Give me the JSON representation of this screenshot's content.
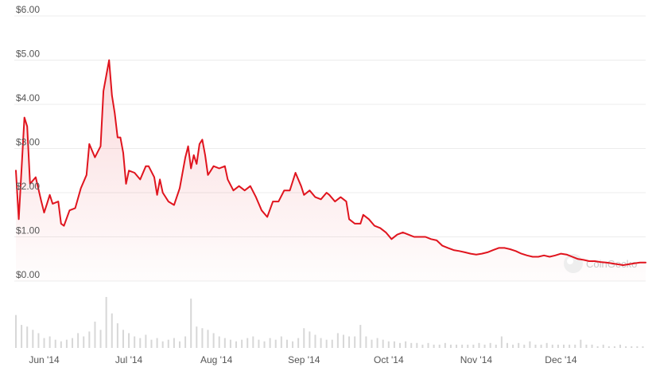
{
  "chart_data": {
    "type": "line",
    "y_tick_labels": [
      "$0.00",
      "$1.00",
      "$2.00",
      "$3.00",
      "$4.00",
      "$5.00",
      "$6.00"
    ],
    "y_tick_values": [
      0,
      1,
      2,
      3,
      4,
      5,
      6
    ],
    "ylim": [
      0,
      6
    ],
    "x_tick_labels": [
      "Jun '14",
      "Jul '14",
      "Aug '14",
      "Sep '14",
      "Oct '14",
      "Nov '14",
      "Dec '14"
    ],
    "x_tick_dates": [
      "2014-06-01",
      "2014-07-01",
      "2014-08-01",
      "2014-09-01",
      "2014-10-01",
      "2014-11-01",
      "2014-12-01"
    ],
    "x_range": [
      "2014-05-22",
      "2014-12-31"
    ],
    "grid": true,
    "line_color": "#e0141e",
    "volume_color": "#d7d7d7",
    "watermark": "CoinGecko",
    "price": {
      "dates": [
        "2014-05-22",
        "2014-05-23",
        "2014-05-25",
        "2014-05-26",
        "2014-05-27",
        "2014-05-29",
        "2014-05-31",
        "2014-06-01",
        "2014-06-02",
        "2014-06-03",
        "2014-06-04",
        "2014-06-06",
        "2014-06-07",
        "2014-06-08",
        "2014-06-10",
        "2014-06-12",
        "2014-06-14",
        "2014-06-16",
        "2014-06-17",
        "2014-06-19",
        "2014-06-21",
        "2014-06-22",
        "2014-06-24",
        "2014-06-25",
        "2014-06-26",
        "2014-06-27",
        "2014-06-28",
        "2014-06-29",
        "2014-06-30",
        "2014-07-01",
        "2014-07-03",
        "2014-07-05",
        "2014-07-07",
        "2014-07-08",
        "2014-07-10",
        "2014-07-11",
        "2014-07-12",
        "2014-07-13",
        "2014-07-15",
        "2014-07-17",
        "2014-07-19",
        "2014-07-21",
        "2014-07-22",
        "2014-07-23",
        "2014-07-24",
        "2014-07-25",
        "2014-07-26",
        "2014-07-27",
        "2014-07-28",
        "2014-07-29",
        "2014-07-30",
        "2014-07-31",
        "2014-08-02",
        "2014-08-04",
        "2014-08-05",
        "2014-08-07",
        "2014-08-09",
        "2014-08-11",
        "2014-08-13",
        "2014-08-15",
        "2014-08-17",
        "2014-08-19",
        "2014-08-21",
        "2014-08-23",
        "2014-08-25",
        "2014-08-27",
        "2014-08-29",
        "2014-08-31",
        "2014-09-01",
        "2014-09-03",
        "2014-09-05",
        "2014-09-07",
        "2014-09-09",
        "2014-09-10",
        "2014-09-12",
        "2014-09-14",
        "2014-09-16",
        "2014-09-17",
        "2014-09-19",
        "2014-09-21",
        "2014-09-22",
        "2014-09-24",
        "2014-09-26",
        "2014-09-28",
        "2014-09-30",
        "2014-10-02",
        "2014-10-04",
        "2014-10-06",
        "2014-10-08",
        "2014-10-10",
        "2014-10-12",
        "2014-10-14",
        "2014-10-16",
        "2014-10-18",
        "2014-10-20",
        "2014-10-22",
        "2014-10-24",
        "2014-10-26",
        "2014-10-28",
        "2014-10-30",
        "2014-11-01",
        "2014-11-03",
        "2014-11-05",
        "2014-11-07",
        "2014-11-09",
        "2014-11-11",
        "2014-11-13",
        "2014-11-15",
        "2014-11-17",
        "2014-11-19",
        "2014-11-21",
        "2014-11-23",
        "2014-11-25",
        "2014-11-27",
        "2014-11-29",
        "2014-12-01",
        "2014-12-03",
        "2014-12-05",
        "2014-12-07",
        "2014-12-09",
        "2014-12-11",
        "2014-12-13",
        "2014-12-15",
        "2014-12-17",
        "2014-12-19",
        "2014-12-21",
        "2014-12-23",
        "2014-12-25",
        "2014-12-27",
        "2014-12-29",
        "2014-12-31"
      ],
      "values": [
        2.5,
        1.4,
        3.7,
        3.5,
        2.2,
        2.35,
        1.8,
        1.55,
        1.75,
        1.95,
        1.75,
        1.8,
        1.3,
        1.25,
        1.6,
        1.65,
        2.1,
        2.4,
        3.1,
        2.8,
        3.05,
        4.3,
        5.0,
        4.2,
        3.8,
        3.25,
        3.25,
        2.9,
        2.2,
        2.5,
        2.45,
        2.3,
        2.6,
        2.6,
        2.35,
        1.95,
        2.3,
        2.0,
        1.8,
        1.72,
        2.1,
        2.8,
        3.05,
        2.55,
        2.85,
        2.65,
        3.1,
        3.2,
        2.85,
        2.4,
        2.5,
        2.6,
        2.55,
        2.6,
        2.3,
        2.05,
        2.15,
        2.05,
        2.15,
        1.9,
        1.6,
        1.45,
        1.8,
        1.8,
        2.05,
        2.05,
        2.45,
        2.15,
        1.95,
        2.05,
        1.9,
        1.85,
        2.0,
        1.95,
        1.8,
        1.9,
        1.8,
        1.4,
        1.3,
        1.3,
        1.5,
        1.4,
        1.25,
        1.2,
        1.1,
        0.95,
        1.05,
        1.1,
        1.05,
        1.0,
        1.0,
        1.0,
        0.95,
        0.92,
        0.8,
        0.75,
        0.7,
        0.68,
        0.65,
        0.62,
        0.6,
        0.62,
        0.65,
        0.7,
        0.75,
        0.75,
        0.72,
        0.68,
        0.62,
        0.58,
        0.55,
        0.55,
        0.58,
        0.55,
        0.58,
        0.62,
        0.6,
        0.55,
        0.5,
        0.48,
        0.45,
        0.45,
        0.43,
        0.42,
        0.4,
        0.38,
        0.36,
        0.38,
        0.4,
        0.42,
        0.42
      ]
    },
    "volume": {
      "dates": [
        "2014-05-22",
        "2014-05-24",
        "2014-05-26",
        "2014-05-28",
        "2014-05-30",
        "2014-06-01",
        "2014-06-03",
        "2014-06-05",
        "2014-06-07",
        "2014-06-09",
        "2014-06-11",
        "2014-06-13",
        "2014-06-15",
        "2014-06-17",
        "2014-06-19",
        "2014-06-21",
        "2014-06-23",
        "2014-06-25",
        "2014-06-27",
        "2014-06-29",
        "2014-07-01",
        "2014-07-03",
        "2014-07-05",
        "2014-07-07",
        "2014-07-09",
        "2014-07-11",
        "2014-07-13",
        "2014-07-15",
        "2014-07-17",
        "2014-07-19",
        "2014-07-21",
        "2014-07-23",
        "2014-07-25",
        "2014-07-27",
        "2014-07-29",
        "2014-07-31",
        "2014-08-02",
        "2014-08-04",
        "2014-08-06",
        "2014-08-08",
        "2014-08-10",
        "2014-08-12",
        "2014-08-14",
        "2014-08-16",
        "2014-08-18",
        "2014-08-20",
        "2014-08-22",
        "2014-08-24",
        "2014-08-26",
        "2014-08-28",
        "2014-08-30",
        "2014-09-01",
        "2014-09-03",
        "2014-09-05",
        "2014-09-07",
        "2014-09-09",
        "2014-09-11",
        "2014-09-13",
        "2014-09-15",
        "2014-09-17",
        "2014-09-19",
        "2014-09-21",
        "2014-09-23",
        "2014-09-25",
        "2014-09-27",
        "2014-09-29",
        "2014-10-01",
        "2014-10-03",
        "2014-10-05",
        "2014-10-07",
        "2014-10-09",
        "2014-10-11",
        "2014-10-13",
        "2014-10-15",
        "2014-10-17",
        "2014-10-19",
        "2014-10-21",
        "2014-10-23",
        "2014-10-25",
        "2014-10-27",
        "2014-10-29",
        "2014-10-31",
        "2014-11-02",
        "2014-11-04",
        "2014-11-06",
        "2014-11-08",
        "2014-11-10",
        "2014-11-12",
        "2014-11-14",
        "2014-11-16",
        "2014-11-18",
        "2014-11-20",
        "2014-11-22",
        "2014-11-24",
        "2014-11-26",
        "2014-11-28",
        "2014-11-30",
        "2014-12-02",
        "2014-12-04",
        "2014-12-06",
        "2014-12-08",
        "2014-12-10",
        "2014-12-12",
        "2014-12-14",
        "2014-12-16",
        "2014-12-18",
        "2014-12-20",
        "2014-12-22",
        "2014-12-24",
        "2014-12-26",
        "2014-12-28",
        "2014-12-30"
      ],
      "values": [
        40,
        28,
        26,
        22,
        18,
        12,
        14,
        10,
        8,
        10,
        12,
        18,
        14,
        20,
        32,
        22,
        62,
        42,
        30,
        22,
        18,
        14,
        12,
        16,
        10,
        12,
        8,
        10,
        12,
        8,
        14,
        60,
        26,
        24,
        22,
        18,
        14,
        12,
        10,
        8,
        10,
        12,
        14,
        10,
        8,
        12,
        10,
        14,
        10,
        8,
        12,
        24,
        20,
        16,
        12,
        10,
        10,
        18,
        16,
        14,
        14,
        28,
        14,
        10,
        12,
        10,
        8,
        8,
        6,
        8,
        6,
        6,
        4,
        6,
        4,
        4,
        6,
        4,
        4,
        4,
        4,
        4,
        6,
        4,
        6,
        4,
        14,
        6,
        4,
        6,
        4,
        8,
        4,
        4,
        6,
        4,
        4,
        4,
        4,
        4,
        10,
        4,
        4,
        2,
        4,
        2,
        2,
        4,
        2,
        2,
        2,
        2
      ]
    }
  }
}
